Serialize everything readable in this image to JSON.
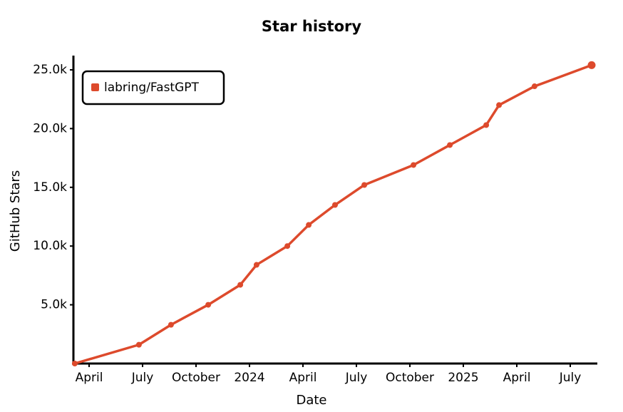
{
  "chart_data": {
    "type": "line",
    "title": "Star history",
    "x_label": "Date",
    "y_label": "GitHub Stars",
    "x": [
      2023.183,
      2023.483,
      2023.633,
      2023.807,
      2023.957,
      2024.033,
      2024.177,
      2024.277,
      2024.4,
      2024.537,
      2024.767,
      2024.937,
      2025.107,
      2025.167,
      2025.333,
      2025.6
    ],
    "series": [
      {
        "name": "labring/FastGPT",
        "color": "#dd4a2c",
        "values": [
          0,
          1600,
          3300,
          5000,
          6700,
          8400,
          10000,
          11800,
          13500,
          15200,
          16900,
          18600,
          20300,
          22000,
          23600,
          25400
        ]
      }
    ],
    "xlim": [
      2023.17,
      2025.62
    ],
    "xticks": [
      {
        "value": 2023.25,
        "label": "April"
      },
      {
        "value": 2023.5,
        "label": "July"
      },
      {
        "value": 2023.75,
        "label": "October"
      },
      2024,
      {
        "value": 2024.25,
        "label": "April"
      },
      {
        "value": 2024.5,
        "label": "July"
      },
      {
        "value": 2024.75,
        "label": "October"
      },
      2025,
      {
        "value": 2025.25,
        "label": "April"
      },
      {
        "value": 2025.5,
        "label": "July"
      }
    ],
    "ylim": [
      0,
      26000
    ],
    "yticks": [
      {
        "value": 5000,
        "label": "5.0k"
      },
      {
        "value": 10000,
        "label": "10.0k"
      },
      {
        "value": 15000,
        "label": "15.0k"
      },
      {
        "value": 20000,
        "label": "20.0k"
      },
      {
        "value": 25000,
        "label": "25.0k"
      }
    ],
    "grid": false,
    "legend": "upper-left"
  }
}
